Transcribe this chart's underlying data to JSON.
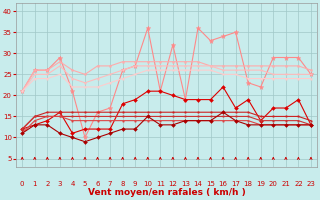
{
  "background_color": "#c8ecec",
  "grid_color": "#a0c8c8",
  "x_labels": [
    "0",
    "1",
    "2",
    "3",
    "4",
    "5",
    "6",
    "7",
    "8",
    "9",
    "10",
    "11",
    "12",
    "13",
    "14",
    "15",
    "16",
    "17",
    "18",
    "19",
    "20",
    "21",
    "22",
    "23"
  ],
  "xlabel": "Vent moyen/en rafales ( km/h )",
  "yticks": [
    5,
    10,
    15,
    20,
    25,
    30,
    35,
    40
  ],
  "ylim": [
    3,
    42
  ],
  "xlim": [
    -0.5,
    23.5
  ],
  "series": [
    {
      "name": "rafales_max",
      "color": "#ff8888",
      "lw": 0.8,
      "marker": "*",
      "ms": 3.5,
      "data": [
        21,
        26,
        26,
        29,
        21,
        10,
        16,
        17,
        26,
        27,
        36,
        21,
        32,
        19,
        36,
        33,
        34,
        35,
        23,
        22,
        29,
        29,
        29,
        25
      ]
    },
    {
      "name": "rafales_mean_high",
      "color": "#ffaaaa",
      "lw": 0.8,
      "marker": "s",
      "ms": 1.2,
      "data": [
        21,
        26,
        26,
        28,
        26,
        25,
        27,
        27,
        28,
        28,
        28,
        28,
        28,
        28,
        28,
        27,
        27,
        27,
        27,
        27,
        27,
        27,
        27,
        26
      ]
    },
    {
      "name": "rafales_mean_mid",
      "color": "#ffbbbb",
      "lw": 0.8,
      "marker": "s",
      "ms": 1.0,
      "data": [
        21,
        25,
        25,
        27,
        24,
        23,
        24,
        25,
        26,
        27,
        27,
        27,
        27,
        27,
        27,
        27,
        26,
        26,
        26,
        26,
        25,
        25,
        25,
        25
      ]
    },
    {
      "name": "rafales_mean_low",
      "color": "#ffcccc",
      "lw": 0.8,
      "marker": "s",
      "ms": 1.0,
      "data": [
        21,
        24,
        24,
        25,
        22,
        22,
        22,
        23,
        24,
        25,
        26,
        26,
        26,
        26,
        26,
        26,
        25,
        25,
        24,
        24,
        24,
        24,
        24,
        24
      ]
    },
    {
      "name": "vent_max",
      "color": "#dd0000",
      "lw": 0.8,
      "marker": "D",
      "ms": 2.0,
      "data": [
        12,
        13,
        14,
        16,
        11,
        12,
        12,
        12,
        18,
        19,
        21,
        21,
        20,
        19,
        19,
        19,
        22,
        17,
        19,
        14,
        17,
        17,
        19,
        13
      ]
    },
    {
      "name": "vent_mean_high",
      "color": "#cc2222",
      "lw": 0.8,
      "marker": "s",
      "ms": 1.0,
      "data": [
        12,
        15,
        16,
        16,
        16,
        16,
        16,
        16,
        16,
        16,
        16,
        16,
        16,
        16,
        16,
        16,
        16,
        16,
        16,
        15,
        15,
        15,
        15,
        14
      ]
    },
    {
      "name": "vent_mean_mid",
      "color": "#cc3333",
      "lw": 0.8,
      "marker": "s",
      "ms": 1.0,
      "data": [
        12,
        15,
        15,
        15,
        15,
        15,
        15,
        15,
        15,
        15,
        15,
        15,
        15,
        15,
        15,
        15,
        15,
        15,
        15,
        14,
        14,
        14,
        14,
        13
      ]
    },
    {
      "name": "vent_mean_low",
      "color": "#dd4444",
      "lw": 0.8,
      "marker": "s",
      "ms": 1.0,
      "data": [
        11,
        14,
        15,
        15,
        14,
        14,
        14,
        14,
        14,
        14,
        14,
        14,
        14,
        14,
        14,
        14,
        14,
        14,
        14,
        13,
        13,
        13,
        13,
        13
      ]
    },
    {
      "name": "vent_min",
      "color": "#aa0000",
      "lw": 0.8,
      "marker": "D",
      "ms": 2.0,
      "data": [
        11,
        13,
        13,
        11,
        10,
        9,
        10,
        11,
        12,
        12,
        15,
        13,
        13,
        14,
        14,
        14,
        16,
        14,
        13,
        13,
        13,
        13,
        13,
        13
      ]
    }
  ],
  "arrows_color": "#cc0000",
  "axis_label_color": "#cc0000",
  "axis_fontsize": 6.5,
  "tick_fontsize": 5.0,
  "tick_color": "#cc0000"
}
